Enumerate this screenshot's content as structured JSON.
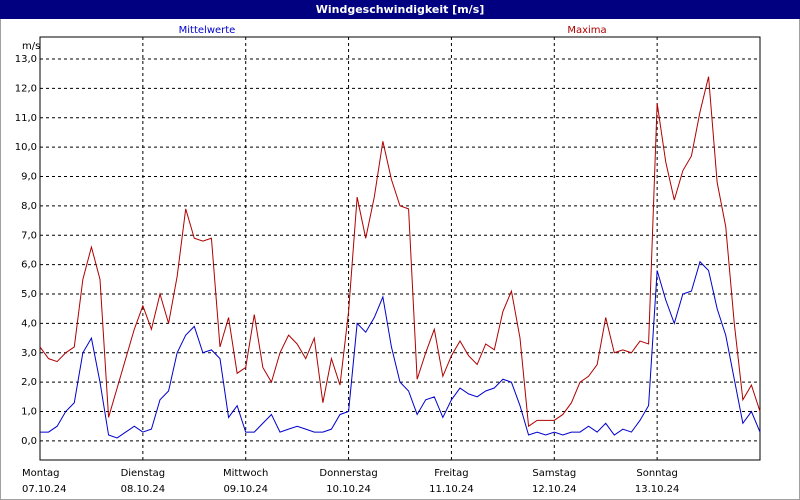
{
  "chart_data": {
    "type": "line",
    "title": "Windgeschwindigkeit [m/s]",
    "y_unit": "m/s",
    "x": [
      0,
      2,
      4,
      6,
      8,
      10,
      12,
      14,
      16,
      18,
      20,
      22,
      24,
      26,
      28,
      30,
      32,
      34,
      36,
      38,
      40,
      42,
      44,
      46,
      48,
      50,
      52,
      54,
      56,
      58,
      60,
      62,
      64,
      66,
      68,
      70,
      72,
      74,
      76,
      78,
      80,
      82,
      84,
      86,
      88,
      90,
      92,
      94,
      96,
      98,
      100,
      102,
      104,
      106,
      108,
      110,
      112,
      114,
      116,
      118,
      120,
      122,
      124,
      126,
      128,
      130,
      132,
      134,
      136,
      138,
      140,
      142,
      144,
      146,
      148,
      150,
      152,
      154,
      156,
      158,
      160,
      162,
      164,
      166,
      168
    ],
    "series": [
      {
        "name": "Mittelwerte",
        "color": "#0000cc",
        "values": [
          0.3,
          0.3,
          0.5,
          1.0,
          1.3,
          3.0,
          3.5,
          2.0,
          0.2,
          0.1,
          0.3,
          0.5,
          0.3,
          0.4,
          1.4,
          1.7,
          3.0,
          3.6,
          3.9,
          3.0,
          3.1,
          2.8,
          0.8,
          1.2,
          0.3,
          0.3,
          0.6,
          0.9,
          0.3,
          0.4,
          0.5,
          0.4,
          0.3,
          0.3,
          0.4,
          0.9,
          1.0,
          4.0,
          3.7,
          4.2,
          4.9,
          3.2,
          2.0,
          1.7,
          0.9,
          1.4,
          1.5,
          0.8,
          1.4,
          1.8,
          1.6,
          1.5,
          1.7,
          1.8,
          2.1,
          2.0,
          1.2,
          0.2,
          0.3,
          0.2,
          0.3,
          0.2,
          0.3,
          0.3,
          0.5,
          0.3,
          0.6,
          0.2,
          0.4,
          0.3,
          0.7,
          1.2,
          5.8,
          4.8,
          4.0,
          5.0,
          5.1,
          6.1,
          5.8,
          4.5,
          3.6,
          2.1,
          0.6,
          1.0,
          0.3
        ]
      },
      {
        "name": "Maxima",
        "color": "#b00000",
        "values": [
          3.2,
          2.8,
          2.7,
          3.0,
          3.2,
          5.5,
          6.6,
          5.5,
          0.8,
          1.8,
          2.8,
          3.8,
          4.6,
          3.8,
          5.0,
          4.0,
          5.6,
          7.9,
          6.9,
          6.8,
          6.9,
          3.2,
          4.2,
          2.3,
          2.5,
          4.3,
          2.5,
          2.0,
          3.0,
          3.6,
          3.3,
          2.8,
          3.5,
          1.3,
          2.8,
          1.9,
          4.4,
          8.3,
          6.9,
          8.3,
          10.2,
          8.9,
          8.0,
          7.9,
          2.1,
          3.0,
          3.8,
          2.2,
          2.9,
          3.4,
          2.9,
          2.6,
          3.3,
          3.1,
          4.4,
          5.1,
          3.5,
          0.5,
          0.7,
          0.7,
          0.7,
          0.9,
          1.3,
          2.0,
          2.2,
          2.6,
          4.2,
          3.0,
          3.1,
          3.0,
          3.4,
          3.3,
          11.5,
          9.5,
          8.2,
          9.2,
          9.7,
          11.2,
          12.4,
          8.8,
          7.3,
          4.0,
          1.4,
          1.9,
          1.0
        ]
      }
    ],
    "xlim": [
      0,
      168
    ],
    "xticks": [
      {
        "value": 0,
        "label": "07.10.24"
      },
      {
        "value": 24,
        "label": "08.10.24"
      },
      {
        "value": 48,
        "label": "09.10.24"
      },
      {
        "value": 72,
        "label": "10.10.24"
      },
      {
        "value": 96,
        "label": "11.10.24"
      },
      {
        "value": 120,
        "label": "12.10.24"
      },
      {
        "value": 144,
        "label": "13.10.24"
      }
    ],
    "xtick_weekdays": [
      "Montag",
      "Dienstag",
      "Mittwoch",
      "Donnerstag",
      "Freitag",
      "Samstag",
      "Sonntag"
    ],
    "ylim": [
      -0.65,
      13.75
    ],
    "yticks": [
      {
        "value": 0,
        "label": "0,0"
      },
      {
        "value": 1,
        "label": "1,0"
      },
      {
        "value": 2,
        "label": "2,0"
      },
      {
        "value": 3,
        "label": "3,0"
      },
      {
        "value": 4,
        "label": "4,0"
      },
      {
        "value": 5,
        "label": "5,0"
      },
      {
        "value": 6,
        "label": "6,0"
      },
      {
        "value": 7,
        "label": "7,0"
      },
      {
        "value": 8,
        "label": "8,0"
      },
      {
        "value": 9,
        "label": "9,0"
      },
      {
        "value": 10,
        "label": "10,0"
      },
      {
        "value": 11,
        "label": "11,0"
      },
      {
        "value": 12,
        "label": "12,0"
      },
      {
        "value": 13,
        "label": "13,0"
      }
    ],
    "grid": true
  }
}
